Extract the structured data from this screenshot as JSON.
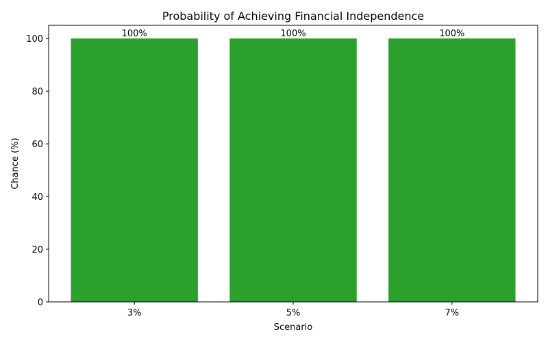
{
  "chart_data": {
    "type": "bar",
    "title": "Probability of Achieving Financial Independence",
    "xlabel": "Scenario",
    "ylabel": "Chance (%)",
    "categories": [
      "3%",
      "5%",
      "7%"
    ],
    "values": [
      100,
      100,
      100
    ],
    "data_labels": [
      "100%",
      "100%",
      "100%"
    ],
    "ylim": [
      0,
      105
    ],
    "yticks": [
      0,
      20,
      40,
      60,
      80,
      100
    ],
    "grid": false,
    "bar_color": "#2ca02c"
  }
}
